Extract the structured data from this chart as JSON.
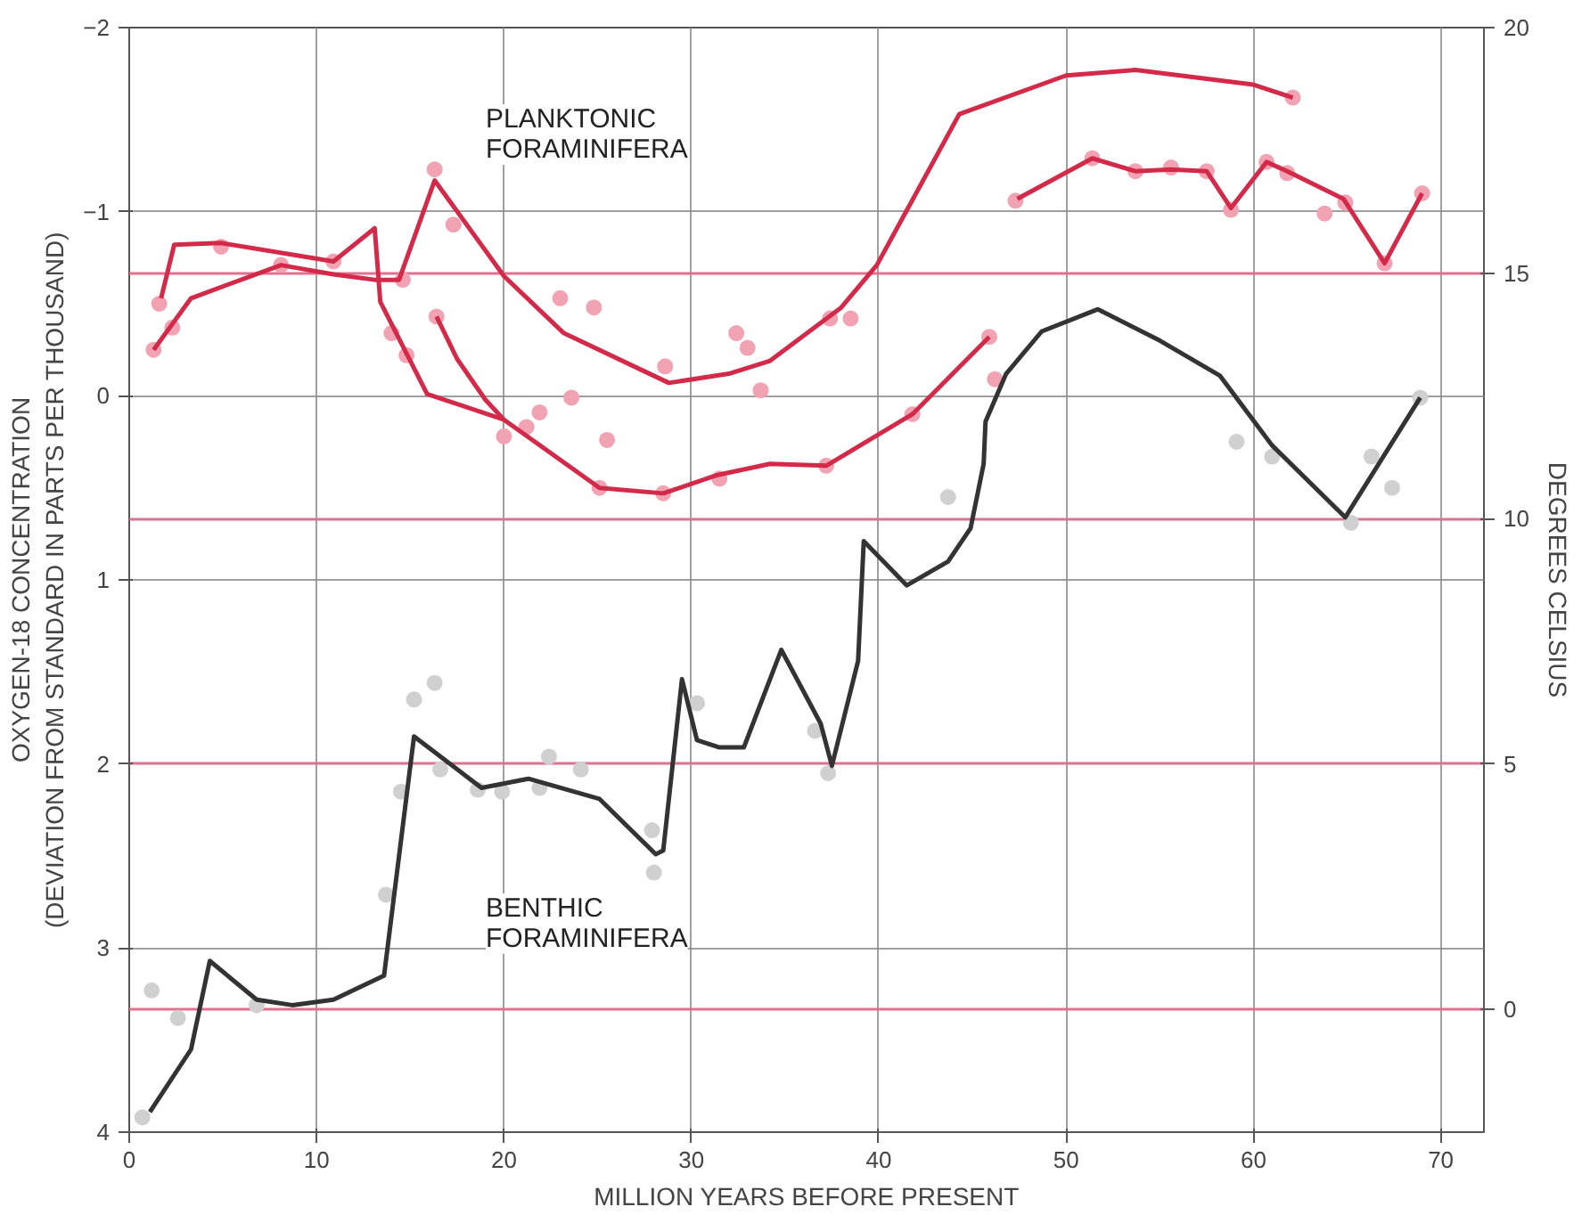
{
  "chart_data": {
    "type": "line",
    "xlabel": "MILLION YEARS BEFORE PRESENT",
    "ylabel": "OXYGEN-18 CONCENTRATION\n(DEVIATION FROM STANDARD IN PARTS PER THOUSAND)",
    "y2label": "DEGREES CELSIUS",
    "xlim": [
      0,
      72.3
    ],
    "xticks": [
      0,
      10,
      20,
      30,
      40,
      50,
      60,
      70
    ],
    "ylim": [
      4,
      -2
    ],
    "yticks": [
      -2,
      -1,
      0,
      1,
      2,
      3,
      4
    ],
    "y2lim": [
      -2.5,
      20
    ],
    "y2ticks": [
      0,
      5,
      10,
      15,
      20
    ],
    "grid": true,
    "annotations": [
      "PLANKTONIC\nFORAMINIFERA",
      "BENTHIC\nFORAMINIFERA"
    ],
    "series": [
      {
        "type": "scatter",
        "marker": "circle",
        "color": "#f2a3b3",
        "x": [
          1.3,
          1.6,
          2.3,
          4.9,
          8.1,
          10.9,
          14.6,
          16.3,
          17.3,
          16.4,
          14.0,
          14.8,
          23.0,
          24.8,
          20.0,
          21.2,
          21.9,
          23.6,
          25.5,
          28.6,
          32.4,
          33.0,
          33.7,
          31.5,
          28.5,
          25.1,
          37.2,
          37.4,
          38.5,
          41.8,
          45.9,
          46.2,
          62.1,
          47.3,
          51.4,
          53.7,
          55.6,
          57.5,
          58.8,
          60.7,
          61.8,
          63.8,
          64.9,
          67.0,
          69.0
        ],
        "values": [
          -0.25,
          -0.5,
          -0.37,
          -0.81,
          -0.71,
          -0.73,
          -0.63,
          -1.23,
          -0.93,
          -0.43,
          -0.34,
          -0.22,
          -0.53,
          -0.48,
          0.22,
          0.17,
          0.09,
          0.01,
          0.24,
          -0.16,
          -0.34,
          -0.26,
          -0.03,
          0.45,
          0.53,
          0.5,
          0.38,
          -0.42,
          -0.42,
          0.1,
          -0.32,
          -0.09,
          -1.62,
          -1.06,
          -1.29,
          -1.22,
          -1.24,
          -1.22,
          -1.01,
          -1.27,
          -1.21,
          -0.99,
          -1.05,
          -0.72,
          -1.1
        ]
      },
      {
        "type": "scatter",
        "marker": "circle",
        "color": "#d0d0d0",
        "x": [
          0.7,
          1.2,
          2.6,
          6.8,
          13.7,
          14.5,
          15.2,
          16.3,
          16.6,
          18.6,
          19.9,
          21.9,
          22.4,
          24.1,
          27.9,
          28.0,
          30.3,
          36.6,
          37.3,
          43.7,
          59.1,
          61.0,
          65.2,
          66.3,
          67.4,
          68.9
        ],
        "values": [
          3.92,
          3.23,
          3.38,
          3.31,
          2.71,
          2.15,
          1.65,
          1.56,
          2.03,
          2.14,
          2.15,
          2.13,
          1.96,
          2.03,
          2.36,
          2.59,
          1.67,
          1.82,
          2.05,
          0.55,
          0.25,
          0.33,
          0.69,
          0.33,
          0.5,
          0.01
        ]
      },
      {
        "color": "#d42a4a",
        "x": [
          1.7,
          2.4,
          4.9,
          10.9,
          13.1,
          13.4,
          15.9,
          20.0,
          25.1,
          28.5,
          31.4,
          34.2,
          37.2,
          41.8,
          45.9
        ],
        "values": [
          -0.53,
          -0.82,
          -0.83,
          -0.73,
          -0.91,
          -0.51,
          -0.01,
          0.13,
          0.5,
          0.53,
          0.43,
          0.37,
          0.38,
          0.1,
          -0.32
        ]
      },
      {
        "color": "#d42a4a",
        "x": [
          1.3,
          3.3,
          8.1,
          10.9,
          13.1,
          14.4,
          16.3,
          20.0,
          23.2,
          28.8,
          32.0,
          34.2,
          38.0,
          39.9,
          44.3,
          50.0,
          53.7,
          60.0,
          62.1
        ],
        "values": [
          -0.25,
          -0.53,
          -0.71,
          -0.66,
          -0.63,
          -0.63,
          -1.17,
          -0.65,
          -0.34,
          -0.07,
          -0.12,
          -0.19,
          -0.48,
          -0.71,
          -1.53,
          -1.74,
          -1.77,
          -1.69,
          -1.62
        ]
      },
      {
        "color": "#d42a4a",
        "x": [
          16.4,
          17.5,
          19.0,
          20.0
        ],
        "values": [
          -0.43,
          -0.2,
          0.02,
          0.13
        ]
      },
      {
        "color": "#d42a4a",
        "x": [
          47.4,
          51.4,
          53.7,
          55.6,
          57.5,
          58.8,
          60.7,
          61.8,
          64.8,
          67.0,
          69.0
        ],
        "values": [
          -1.07,
          -1.29,
          -1.22,
          -1.23,
          -1.22,
          -1.02,
          -1.27,
          -1.22,
          -1.07,
          -0.72,
          -1.1
        ]
      },
      {
        "color": "#333333",
        "x": [
          1.1,
          3.3,
          4.3,
          6.8,
          8.7,
          10.9,
          13.6,
          15.2,
          18.8,
          21.3,
          25.1,
          28.1,
          28.5,
          29.5,
          30.3,
          31.5,
          32.8,
          34.8,
          36.9,
          37.5,
          38.9,
          39.2,
          41.5,
          43.7,
          44.9,
          45.6,
          45.7,
          46.8,
          48.7,
          51.7,
          55.0,
          58.2,
          61.0,
          64.9,
          68.9
        ],
        "values": [
          3.89,
          3.55,
          3.07,
          3.28,
          3.31,
          3.28,
          3.15,
          1.85,
          2.13,
          2.08,
          2.19,
          2.49,
          2.47,
          1.54,
          1.87,
          1.91,
          1.91,
          1.38,
          1.78,
          2.01,
          1.44,
          0.79,
          1.03,
          0.9,
          0.72,
          0.37,
          0.14,
          -0.12,
          -0.35,
          -0.47,
          -0.3,
          -0.11,
          0.27,
          0.66,
          0.01
        ]
      }
    ]
  }
}
